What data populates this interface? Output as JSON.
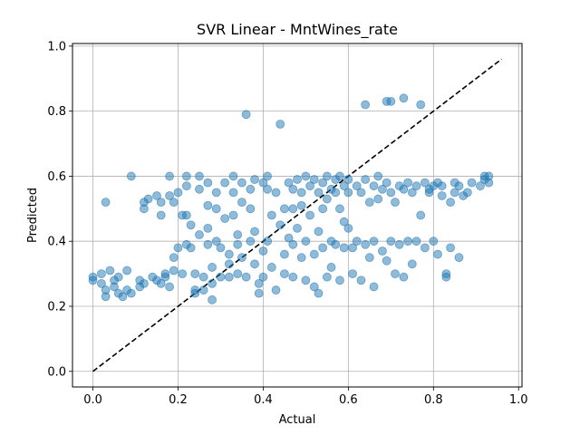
{
  "chart_data": {
    "type": "scatter",
    "title": "SVR Linear - MntWines_rate",
    "xlabel": "Actual",
    "ylabel": "Predicted",
    "xlim": [
      -0.048,
      1.008
    ],
    "ylim": [
      -0.048,
      1.008
    ],
    "xticks": [
      0.0,
      0.2,
      0.4,
      0.6,
      0.8,
      1.0
    ],
    "yticks": [
      0.0,
      0.2,
      0.4,
      0.6,
      0.8,
      1.0
    ],
    "xtick_labels": [
      "0.0",
      "0.2",
      "0.4",
      "0.6",
      "0.8",
      "1.0"
    ],
    "ytick_labels": [
      "0.0",
      "0.2",
      "0.4",
      "0.6",
      "0.8",
      "1.0"
    ],
    "grid": true,
    "point_color": "#1f77b4",
    "point_alpha": 0.5,
    "reference_line": {
      "x": [
        0.0,
        0.96
      ],
      "y": [
        0.0,
        0.96
      ],
      "style": "dashed",
      "color": "#000000"
    },
    "points": [
      [
        0.0,
        0.28
      ],
      [
        0.0,
        0.29
      ],
      [
        0.02,
        0.27
      ],
      [
        0.02,
        0.3
      ],
      [
        0.03,
        0.25
      ],
      [
        0.03,
        0.23
      ],
      [
        0.04,
        0.31
      ],
      [
        0.03,
        0.52
      ],
      [
        0.05,
        0.28
      ],
      [
        0.05,
        0.26
      ],
      [
        0.06,
        0.24
      ],
      [
        0.07,
        0.23
      ],
      [
        0.06,
        0.29
      ],
      [
        0.08,
        0.25
      ],
      [
        0.08,
        0.31
      ],
      [
        0.09,
        0.24
      ],
      [
        0.09,
        0.6
      ],
      [
        0.11,
        0.28
      ],
      [
        0.11,
        0.26
      ],
      [
        0.12,
        0.27
      ],
      [
        0.12,
        0.5
      ],
      [
        0.12,
        0.52
      ],
      [
        0.13,
        0.53
      ],
      [
        0.14,
        0.29
      ],
      [
        0.15,
        0.28
      ],
      [
        0.15,
        0.54
      ],
      [
        0.16,
        0.27
      ],
      [
        0.16,
        0.48
      ],
      [
        0.16,
        0.52
      ],
      [
        0.17,
        0.29
      ],
      [
        0.17,
        0.3
      ],
      [
        0.18,
        0.26
      ],
      [
        0.18,
        0.54
      ],
      [
        0.18,
        0.6
      ],
      [
        0.19,
        0.52
      ],
      [
        0.19,
        0.31
      ],
      [
        0.19,
        0.35
      ],
      [
        0.2,
        0.38
      ],
      [
        0.2,
        0.55
      ],
      [
        0.21,
        0.48
      ],
      [
        0.21,
        0.3
      ],
      [
        0.22,
        0.39
      ],
      [
        0.22,
        0.48
      ],
      [
        0.22,
        0.57
      ],
      [
        0.22,
        0.6
      ],
      [
        0.23,
        0.45
      ],
      [
        0.23,
        0.38
      ],
      [
        0.24,
        0.3
      ],
      [
        0.24,
        0.25
      ],
      [
        0.24,
        0.24
      ],
      [
        0.25,
        0.56
      ],
      [
        0.25,
        0.6
      ],
      [
        0.25,
        0.42
      ],
      [
        0.26,
        0.29
      ],
      [
        0.26,
        0.25
      ],
      [
        0.27,
        0.58
      ],
      [
        0.27,
        0.51
      ],
      [
        0.27,
        0.44
      ],
      [
        0.27,
        0.39
      ],
      [
        0.28,
        0.27
      ],
      [
        0.28,
        0.22
      ],
      [
        0.28,
        0.32
      ],
      [
        0.29,
        0.55
      ],
      [
        0.29,
        0.5
      ],
      [
        0.29,
        0.4
      ],
      [
        0.3,
        0.38
      ],
      [
        0.3,
        0.29
      ],
      [
        0.31,
        0.58
      ],
      [
        0.31,
        0.47
      ],
      [
        0.32,
        0.36
      ],
      [
        0.32,
        0.33
      ],
      [
        0.32,
        0.29
      ],
      [
        0.33,
        0.6
      ],
      [
        0.33,
        0.55
      ],
      [
        0.33,
        0.48
      ],
      [
        0.34,
        0.42
      ],
      [
        0.34,
        0.39
      ],
      [
        0.34,
        0.3
      ],
      [
        0.35,
        0.58
      ],
      [
        0.35,
        0.52
      ],
      [
        0.35,
        0.35
      ],
      [
        0.36,
        0.29
      ],
      [
        0.36,
        0.79
      ],
      [
        0.37,
        0.56
      ],
      [
        0.37,
        0.5
      ],
      [
        0.37,
        0.4
      ],
      [
        0.38,
        0.59
      ],
      [
        0.38,
        0.43
      ],
      [
        0.38,
        0.33
      ],
      [
        0.39,
        0.27
      ],
      [
        0.39,
        0.24
      ],
      [
        0.4,
        0.58
      ],
      [
        0.4,
        0.37
      ],
      [
        0.4,
        0.29
      ],
      [
        0.41,
        0.6
      ],
      [
        0.41,
        0.56
      ],
      [
        0.41,
        0.4
      ],
      [
        0.42,
        0.48
      ],
      [
        0.42,
        0.32
      ],
      [
        0.43,
        0.25
      ],
      [
        0.43,
        0.55
      ],
      [
        0.44,
        0.45
      ],
      [
        0.44,
        0.76
      ],
      [
        0.45,
        0.5
      ],
      [
        0.45,
        0.36
      ],
      [
        0.45,
        0.3
      ],
      [
        0.46,
        0.58
      ],
      [
        0.46,
        0.41
      ],
      [
        0.47,
        0.56
      ],
      [
        0.47,
        0.5
      ],
      [
        0.47,
        0.39
      ],
      [
        0.47,
        0.29
      ],
      [
        0.48,
        0.59
      ],
      [
        0.48,
        0.44
      ],
      [
        0.49,
        0.55
      ],
      [
        0.49,
        0.51
      ],
      [
        0.49,
        0.35
      ],
      [
        0.5,
        0.6
      ],
      [
        0.5,
        0.4
      ],
      [
        0.5,
        0.28
      ],
      [
        0.51,
        0.57
      ],
      [
        0.51,
        0.48
      ],
      [
        0.52,
        0.59
      ],
      [
        0.52,
        0.36
      ],
      [
        0.52,
        0.26
      ],
      [
        0.53,
        0.55
      ],
      [
        0.53,
        0.43
      ],
      [
        0.53,
        0.24
      ],
      [
        0.54,
        0.58
      ],
      [
        0.54,
        0.5
      ],
      [
        0.54,
        0.38
      ],
      [
        0.55,
        0.6
      ],
      [
        0.55,
        0.53
      ],
      [
        0.55,
        0.29
      ],
      [
        0.56,
        0.56
      ],
      [
        0.56,
        0.4
      ],
      [
        0.56,
        0.32
      ],
      [
        0.57,
        0.59
      ],
      [
        0.57,
        0.55
      ],
      [
        0.57,
        0.39
      ],
      [
        0.58,
        0.6
      ],
      [
        0.58,
        0.5
      ],
      [
        0.58,
        0.28
      ],
      [
        0.59,
        0.57
      ],
      [
        0.59,
        0.46
      ],
      [
        0.59,
        0.38
      ],
      [
        0.6,
        0.59
      ],
      [
        0.6,
        0.55
      ],
      [
        0.6,
        0.44
      ],
      [
        0.61,
        0.38
      ],
      [
        0.61,
        0.3
      ],
      [
        0.62,
        0.57
      ],
      [
        0.62,
        0.4
      ],
      [
        0.63,
        0.55
      ],
      [
        0.63,
        0.28
      ],
      [
        0.64,
        0.82
      ],
      [
        0.64,
        0.59
      ],
      [
        0.64,
        0.39
      ],
      [
        0.65,
        0.52
      ],
      [
        0.65,
        0.35
      ],
      [
        0.66,
        0.57
      ],
      [
        0.66,
        0.4
      ],
      [
        0.66,
        0.26
      ],
      [
        0.67,
        0.6
      ],
      [
        0.67,
        0.53
      ],
      [
        0.68,
        0.56
      ],
      [
        0.68,
        0.37
      ],
      [
        0.69,
        0.83
      ],
      [
        0.69,
        0.58
      ],
      [
        0.69,
        0.34
      ],
      [
        0.7,
        0.83
      ],
      [
        0.7,
        0.55
      ],
      [
        0.7,
        0.4
      ],
      [
        0.71,
        0.52
      ],
      [
        0.71,
        0.3
      ],
      [
        0.72,
        0.57
      ],
      [
        0.72,
        0.39
      ],
      [
        0.73,
        0.84
      ],
      [
        0.73,
        0.56
      ],
      [
        0.73,
        0.29
      ],
      [
        0.74,
        0.58
      ],
      [
        0.74,
        0.4
      ],
      [
        0.75,
        0.55
      ],
      [
        0.75,
        0.33
      ],
      [
        0.76,
        0.57
      ],
      [
        0.76,
        0.4
      ],
      [
        0.77,
        0.82
      ],
      [
        0.77,
        0.48
      ],
      [
        0.78,
        0.58
      ],
      [
        0.78,
        0.38
      ],
      [
        0.79,
        0.55
      ],
      [
        0.79,
        0.56
      ],
      [
        0.8,
        0.57
      ],
      [
        0.8,
        0.4
      ],
      [
        0.81,
        0.58
      ],
      [
        0.81,
        0.36
      ],
      [
        0.82,
        0.54
      ],
      [
        0.82,
        0.57
      ],
      [
        0.83,
        0.3
      ],
      [
        0.83,
        0.29
      ],
      [
        0.84,
        0.52
      ],
      [
        0.84,
        0.38
      ],
      [
        0.85,
        0.58
      ],
      [
        0.85,
        0.55
      ],
      [
        0.86,
        0.57
      ],
      [
        0.86,
        0.35
      ],
      [
        0.87,
        0.54
      ],
      [
        0.88,
        0.55
      ],
      [
        0.89,
        0.58
      ],
      [
        0.91,
        0.57
      ],
      [
        0.92,
        0.6
      ],
      [
        0.92,
        0.59
      ],
      [
        0.93,
        0.58
      ],
      [
        0.93,
        0.6
      ]
    ]
  }
}
